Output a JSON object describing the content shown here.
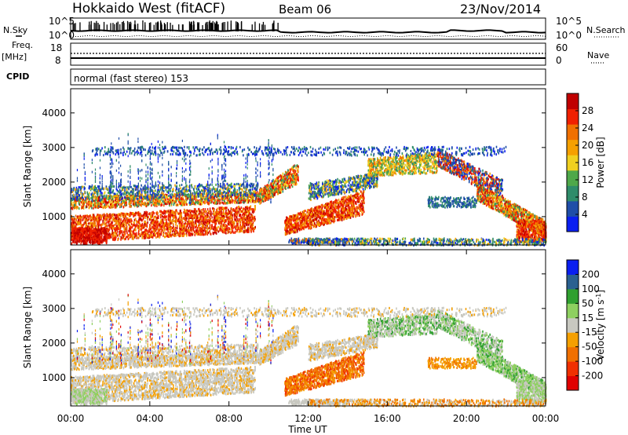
{
  "header": {
    "station": "Hokkaido West (fitACF)",
    "beam": "Beam 06",
    "date": "23/Nov/2014"
  },
  "strip": {
    "nsky_label": "N.Sky",
    "nsearch_label": "N.Search",
    "noise_ticks": [
      "10^5",
      "10^0"
    ],
    "noise_right_ticks": [
      "10^5",
      "10^0"
    ],
    "freq_label": "Freq.",
    "freq_unit": "[MHz]",
    "freq_ticks": [
      "18",
      "8"
    ],
    "nave_label": "Nave",
    "nave_ticks": [
      "60",
      "0"
    ],
    "cpid_label": "CPID",
    "cpid_text": "normal (fast stereo) 153"
  },
  "colors": {
    "power": [
      "#0a1ff0",
      "#1f4ea8",
      "#2f8c6a",
      "#4fa84a",
      "#f0d020",
      "#f5a000",
      "#f07000",
      "#f02000",
      "#c00000"
    ],
    "velocity": [
      "#e00000",
      "#f03000",
      "#f07000",
      "#f5a000",
      "#c8c8c0",
      "#8ed060",
      "#30a030",
      "#2a6090",
      "#0a1ff0"
    ]
  },
  "chart_data": [
    {
      "type": "heatmap",
      "name": "power",
      "ylabel": "Slant Range [km]",
      "xlabel": "Time UT",
      "xticks": [
        "00:00",
        "04:00",
        "08:00",
        "12:00",
        "16:00",
        "20:00",
        "00:00"
      ],
      "xlim_hours": [
        0,
        24
      ],
      "ylim_km": [
        180,
        4700
      ],
      "yticks": [
        1000,
        2000,
        3000,
        4000
      ],
      "colorbar_label": "Power [dB]",
      "colorbar_ticks": [
        "4",
        "8",
        "12",
        "16",
        "20",
        "24",
        "28"
      ],
      "colorbar_range": [
        0,
        32
      ]
    },
    {
      "type": "heatmap",
      "name": "velocity",
      "ylabel": "Slant Range [km]",
      "xlabel": "Time UT",
      "xticks": [
        "00:00",
        "04:00",
        "08:00",
        "12:00",
        "16:00",
        "20:00",
        "00:00"
      ],
      "xlim_hours": [
        0,
        24
      ],
      "ylim_km": [
        180,
        4700
      ],
      "yticks": [
        1000,
        2000,
        3000,
        4000
      ],
      "colorbar_label": "Velocity [m s^-1]",
      "colorbar_ticks": [
        "200",
        "100",
        "50",
        "15",
        "-15",
        "-50",
        "-100",
        "-200"
      ]
    }
  ]
}
